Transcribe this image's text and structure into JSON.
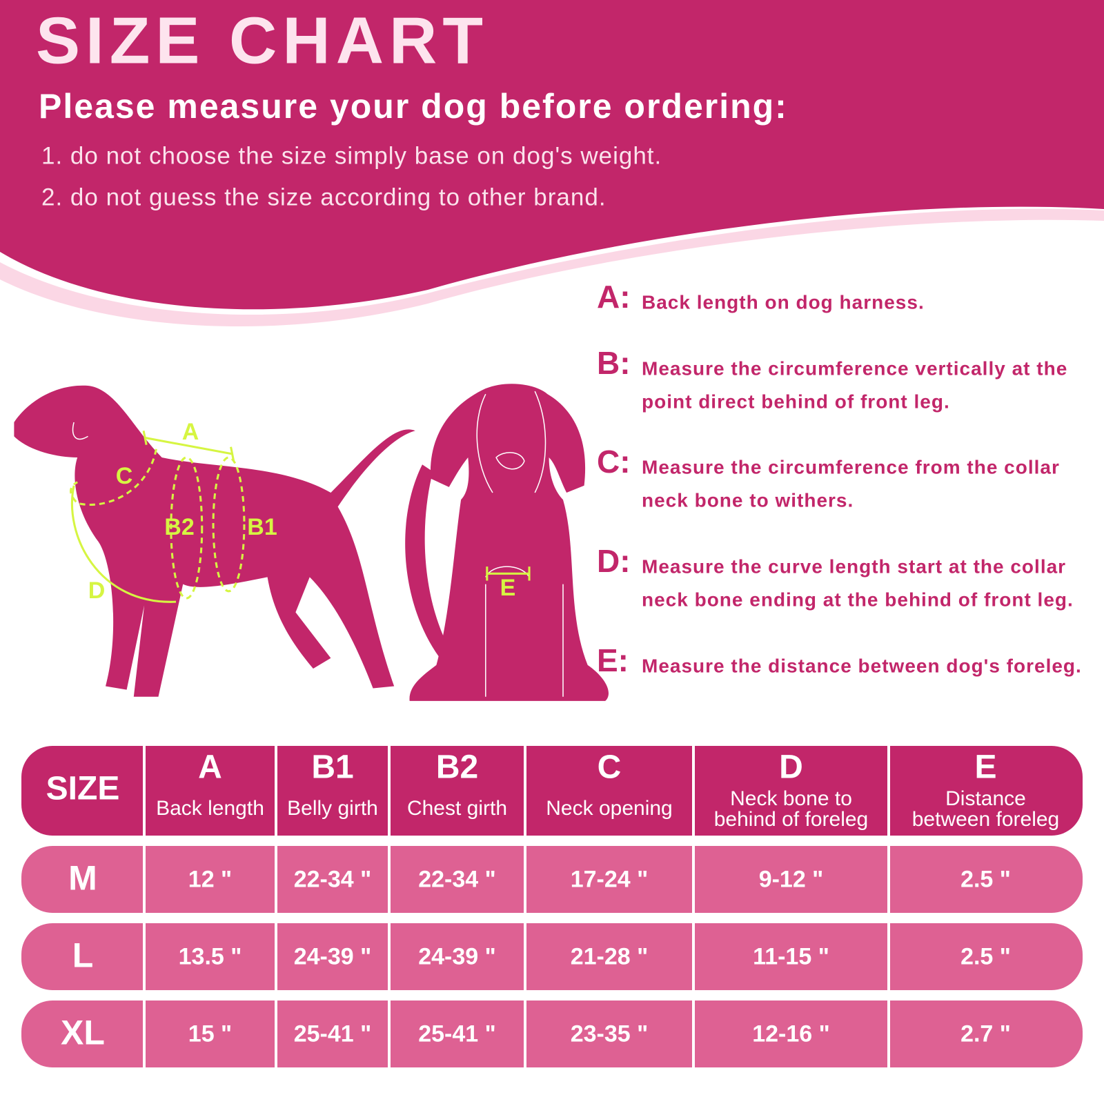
{
  "header": {
    "title": "SIZE CHART",
    "subtitle": "Please measure your dog before ordering:",
    "notes": [
      "1. do not choose the size simply base on dog's weight.",
      "2. do not guess the size according to other brand."
    ]
  },
  "measurements": [
    {
      "letter": "A:",
      "lines": [
        "Back length on dog harness."
      ]
    },
    {
      "letter": "B:",
      "lines": [
        "Measure the circumference vertically at the",
        "point direct behind of front leg."
      ]
    },
    {
      "letter": "C:",
      "lines": [
        "Measure the circumference from the collar",
        "neck bone to withers."
      ]
    },
    {
      "letter": "D:",
      "lines": [
        "Measure the curve length start at the collar",
        "neck bone ending at the behind of front leg."
      ]
    },
    {
      "letter": "E:",
      "lines": [
        "Measure the distance between dog's foreleg."
      ]
    }
  ],
  "diagram": {
    "labels": [
      "A",
      "C",
      "B2",
      "B1",
      "D",
      "E"
    ]
  },
  "table": {
    "size_header": "SIZE",
    "columns": [
      {
        "code": "A",
        "label": [
          "Back length"
        ]
      },
      {
        "code": "B1",
        "label": [
          "Belly girth"
        ]
      },
      {
        "code": "B2",
        "label": [
          "Chest girth"
        ]
      },
      {
        "code": "C",
        "label": [
          "Neck opening"
        ]
      },
      {
        "code": "D",
        "label": [
          "Neck bone to",
          "behind of foreleg"
        ]
      },
      {
        "code": "E",
        "label": [
          "Distance",
          "between foreleg"
        ]
      }
    ],
    "rows": [
      {
        "size": "M",
        "cells": [
          "12 \"",
          "22-34 \"",
          "22-34 \"",
          "17-24 \"",
          "9-12 \"",
          "2.5 \""
        ]
      },
      {
        "size": "L",
        "cells": [
          "13.5 \"",
          "24-39 \"",
          "24-39 \"",
          "21-28 \"",
          "11-15 \"",
          "2.5 \""
        ]
      },
      {
        "size": "XL",
        "cells": [
          "15 \"",
          "25-41 \"",
          "25-41 \"",
          "23-35 \"",
          "12-16 \"",
          "2.7 \""
        ]
      }
    ]
  }
}
